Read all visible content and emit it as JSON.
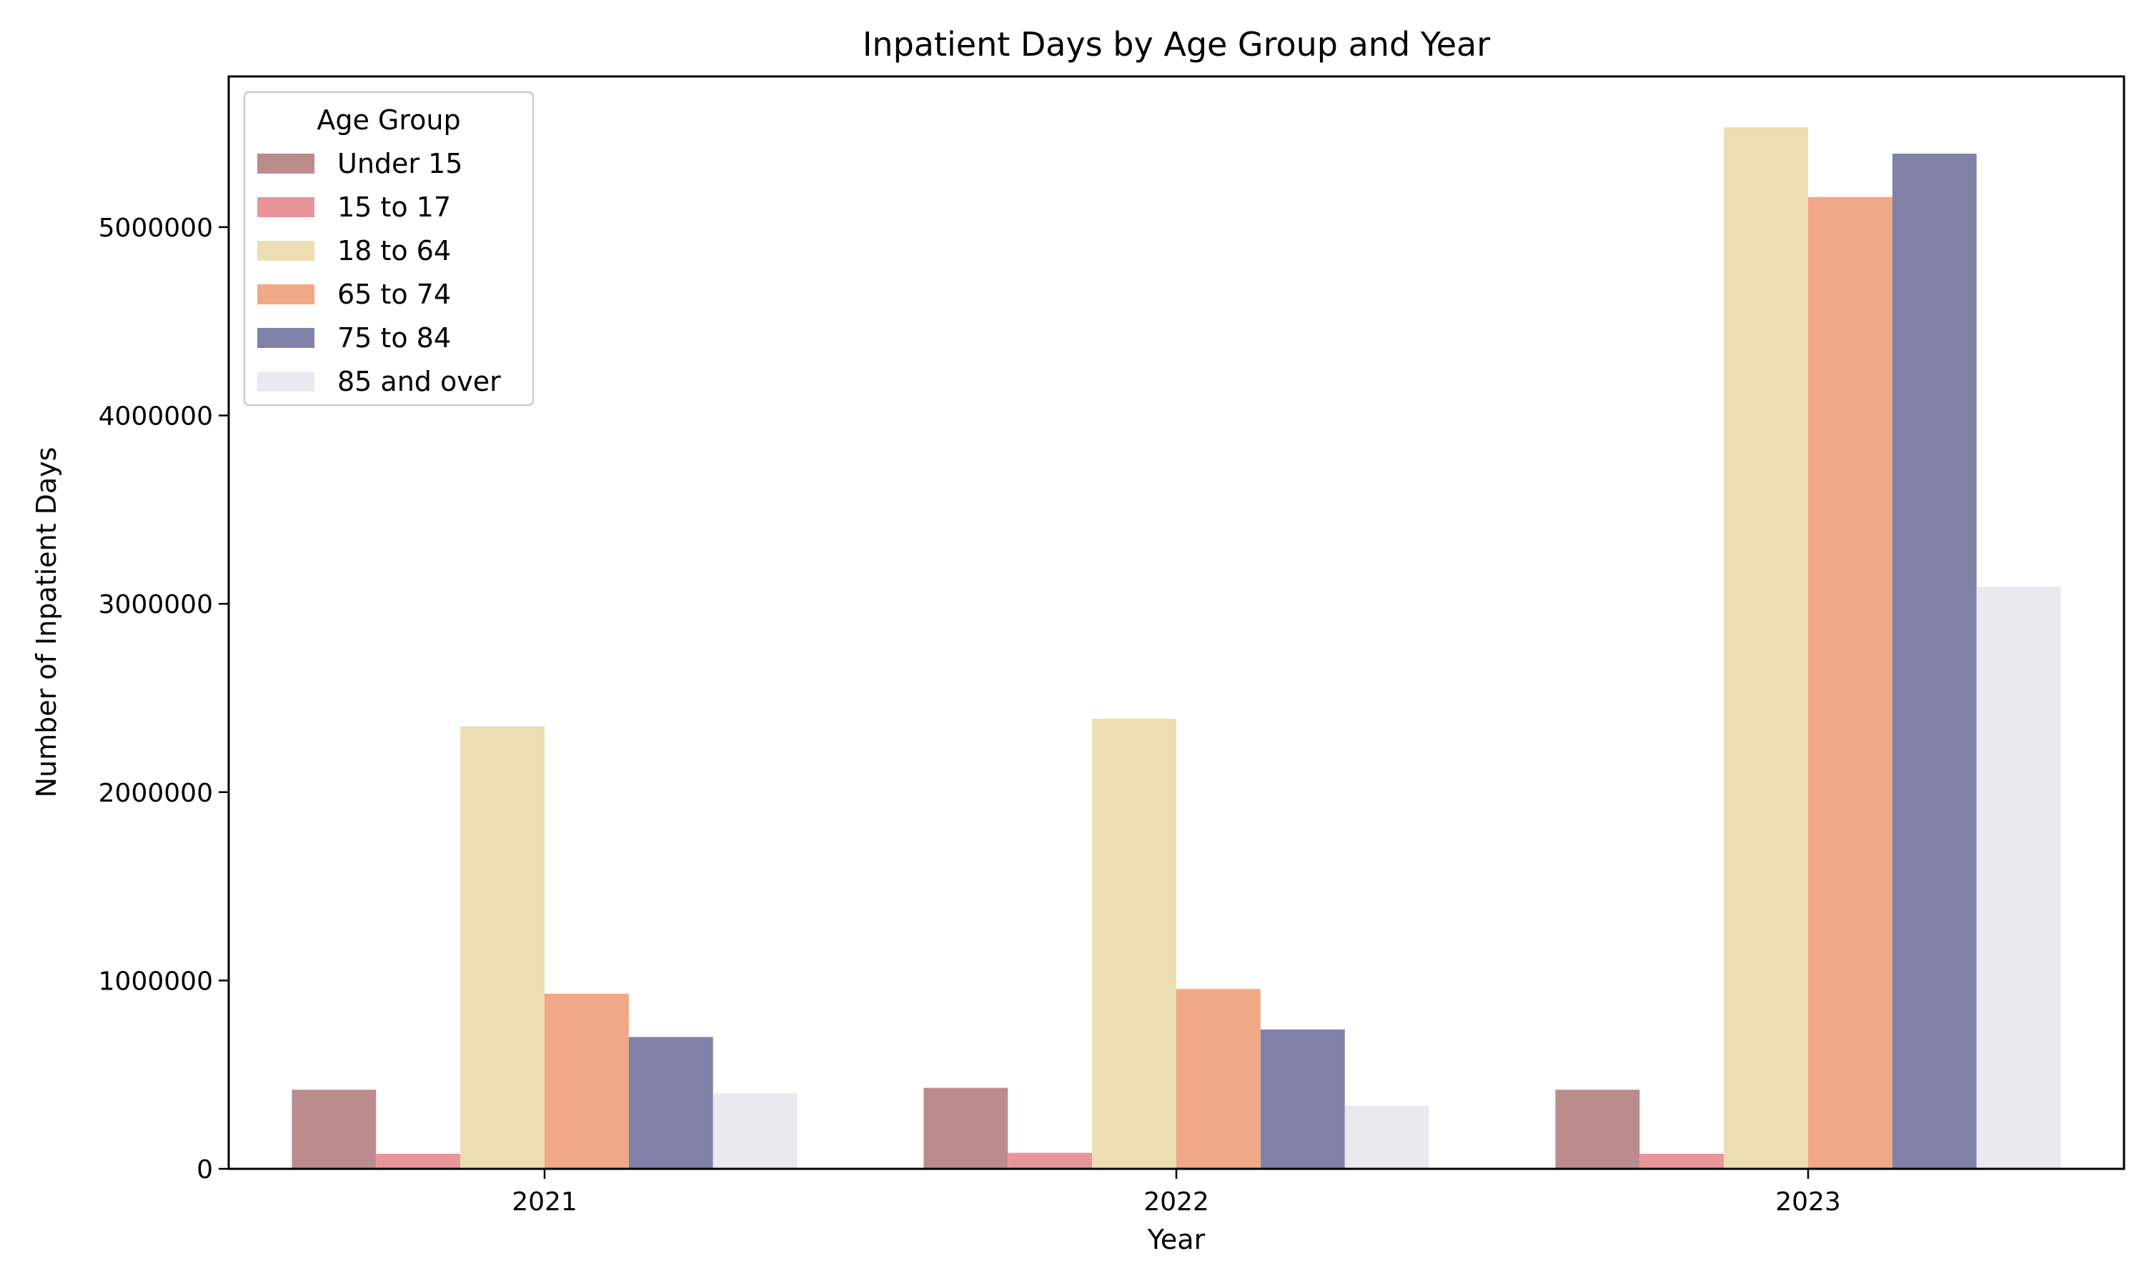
{
  "chart_data": {
    "type": "bar",
    "title": "Inpatient Days by Age Group and Year",
    "xlabel": "Year",
    "ylabel": "Number of Inpatient Days",
    "categories": [
      "2021",
      "2022",
      "2023"
    ],
    "ylim": [
      0,
      5800000
    ],
    "yticks": [
      0,
      1000000,
      2000000,
      3000000,
      4000000,
      5000000
    ],
    "ytick_labels": [
      "0",
      "1000000",
      "2000000",
      "3000000",
      "4000000",
      "5000000"
    ],
    "grid": false,
    "legend": {
      "title": "Age Group",
      "position": "top-left"
    },
    "series": [
      {
        "name": "Under 15",
        "color": "#bc8c8c",
        "values": [
          420000,
          430000,
          420000
        ]
      },
      {
        "name": "15 to 17",
        "color": "#e8959a",
        "values": [
          80000,
          85000,
          80000
        ]
      },
      {
        "name": "18 to 64",
        "color": "#ecdeb2",
        "values": [
          2350000,
          2390000,
          5530000
        ]
      },
      {
        "name": "65 to 74",
        "color": "#f0a887",
        "values": [
          930000,
          955000,
          5160000
        ]
      },
      {
        "name": "75 to 84",
        "color": "#8181a7",
        "values": [
          700000,
          740000,
          5390000
        ]
      },
      {
        "name": "85 and over",
        "color": "#eae9f0",
        "values": [
          400000,
          335000,
          3090000
        ]
      }
    ]
  }
}
